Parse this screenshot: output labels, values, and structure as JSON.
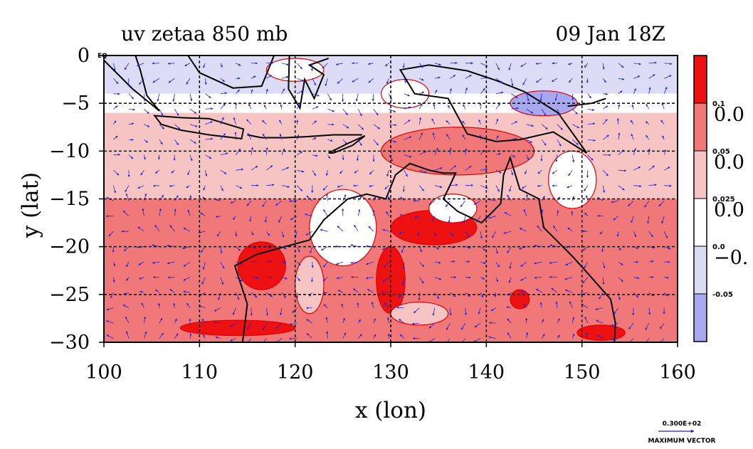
{
  "chart_data": {
    "type": "contour",
    "title": "uv zetaa 850 mb",
    "subtitle": "09 Jan 18Z",
    "xlabel": "x (lon)",
    "ylabel": "y (lat)",
    "xlim": [
      100,
      160
    ],
    "ylim": [
      -30,
      0
    ],
    "x_ticks": [
      100,
      110,
      120,
      130,
      140,
      150,
      160
    ],
    "y_ticks": [
      0,
      -5,
      -10,
      -15,
      -20,
      -25,
      -30
    ],
    "x_tick_labels": [
      "100",
      "110",
      "120",
      "130",
      "140",
      "150",
      "160"
    ],
    "y_tick_labels": [
      "0",
      "−5",
      "−10",
      "−15",
      "−20",
      "−25",
      "−30"
    ],
    "eq_label": "EQ",
    "grid": true,
    "colorbar": {
      "levels": [
        {
          "color": "#ee1111"
        },
        {
          "color": "#f07878"
        },
        {
          "color": "#f7c4c4"
        },
        {
          "color": "#ffffff"
        },
        {
          "color": "#dcdcf6"
        },
        {
          "color": "#a8a8ee"
        }
      ],
      "small_labels": [
        "0.1",
        "0.05",
        "0.025",
        "0.0",
        "-0.05"
      ],
      "big_labels": [
        "0.0",
        "0.0",
        "0.0",
        "−0."
      ]
    },
    "vector_key": {
      "value": "0.300E+02",
      "label": "MAXIMUM VECTOR"
    },
    "bands": [
      {
        "lat_top": 0,
        "lat_bottom": -4,
        "color": "#dcdcf6"
      },
      {
        "lat_top": -4,
        "lat_bottom": -6,
        "color": "#ffffff"
      },
      {
        "lat_top": -6,
        "lat_bottom": -9,
        "color": "#f7c4c4"
      },
      {
        "lat_top": -9,
        "lat_bottom": -15,
        "color": "#f7c4c4"
      },
      {
        "lat_top": -15,
        "lat_bottom": -30,
        "color": "#f07878"
      }
    ],
    "blobs": [
      {
        "lon": 116.5,
        "lat": -22,
        "rx": 2.5,
        "ry": 2.5,
        "color": "#ee1111"
      },
      {
        "lon": 134.5,
        "lat": -18,
        "rx": 4.5,
        "ry": 1.8,
        "color": "#ee1111"
      },
      {
        "lon": 130,
        "lat": -23.5,
        "rx": 1.5,
        "ry": 3.5,
        "color": "#ee1111"
      },
      {
        "lon": 114,
        "lat": -28.5,
        "rx": 6,
        "ry": 0.8,
        "color": "#ee1111"
      },
      {
        "lon": 152,
        "lat": -29,
        "rx": 2.5,
        "ry": 0.8,
        "color": "#ee1111"
      },
      {
        "lon": 143.5,
        "lat": -25.5,
        "rx": 1,
        "ry": 1,
        "color": "#ee1111"
      },
      {
        "lon": 137,
        "lat": -10,
        "rx": 8,
        "ry": 2.5,
        "color": "#f07878"
      },
      {
        "lon": 146,
        "lat": -5,
        "rx": 3.5,
        "ry": 1.3,
        "color": "#a8a8ee"
      },
      {
        "lon": 125,
        "lat": -18,
        "rx": 3.5,
        "ry": 4,
        "color": "#ffffff"
      },
      {
        "lon": 136.5,
        "lat": -16,
        "rx": 2.5,
        "ry": 1.5,
        "color": "#ffffff"
      },
      {
        "lon": 149,
        "lat": -13,
        "rx": 2.5,
        "ry": 3,
        "color": "#ffffff"
      },
      {
        "lon": 133,
        "lat": -27,
        "rx": 3,
        "ry": 1.2,
        "color": "#f7c4c4"
      },
      {
        "lon": 121.5,
        "lat": -24,
        "rx": 1.5,
        "ry": 3,
        "color": "#f7c4c4"
      },
      {
        "lon": 131.5,
        "lat": -4,
        "rx": 2.5,
        "ry": 1.5,
        "color": "#ffffff"
      },
      {
        "lon": 120,
        "lat": -1.5,
        "rx": 3,
        "ry": 1.2,
        "color": "#ffffff"
      }
    ],
    "coastlines": [
      {
        "name": "australia",
        "closed": true,
        "points": [
          [
            114.5,
            -30
          ],
          [
            115,
            -26
          ],
          [
            113.7,
            -22
          ],
          [
            116,
            -20.8
          ],
          [
            121.5,
            -19.3
          ],
          [
            123,
            -17.2
          ],
          [
            125.5,
            -15
          ],
          [
            127.5,
            -14.5
          ],
          [
            129.5,
            -15
          ],
          [
            130.5,
            -12.5
          ],
          [
            132,
            -11.3
          ],
          [
            134,
            -12
          ],
          [
            135.5,
            -12.3
          ],
          [
            136.8,
            -12.3
          ],
          [
            136,
            -14
          ],
          [
            135.5,
            -15
          ],
          [
            137,
            -16.3
          ],
          [
            139.5,
            -17.5
          ],
          [
            141.5,
            -15.5
          ],
          [
            141.8,
            -12.5
          ],
          [
            142.5,
            -10.7
          ],
          [
            143.5,
            -14
          ],
          [
            145.5,
            -15
          ],
          [
            146,
            -18
          ],
          [
            149,
            -21
          ],
          [
            150.8,
            -23
          ],
          [
            153,
            -25.5
          ],
          [
            153.5,
            -28
          ],
          [
            153.4,
            -30
          ],
          [
            114.5,
            -30
          ]
        ]
      },
      {
        "name": "new-guinea",
        "closed": true,
        "points": [
          [
            131,
            -1.5
          ],
          [
            134,
            -1
          ],
          [
            138,
            -1.6
          ],
          [
            141,
            -2.6
          ],
          [
            144,
            -3.8
          ],
          [
            147.5,
            -6
          ],
          [
            150.5,
            -10.2
          ],
          [
            147,
            -8
          ],
          [
            143.5,
            -8.8
          ],
          [
            141,
            -9
          ],
          [
            138,
            -8.2
          ],
          [
            136,
            -4.5
          ],
          [
            132.5,
            -4
          ],
          [
            131,
            -1.5
          ]
        ]
      },
      {
        "name": "borneo",
        "closed": false,
        "points": [
          [
            108.8,
            0
          ],
          [
            110,
            -1.8
          ],
          [
            113.5,
            -3.4
          ],
          [
            116.5,
            -3.2
          ],
          [
            117.8,
            0
          ]
        ]
      },
      {
        "name": "sumatra",
        "closed": false,
        "points": [
          [
            100,
            -0.5
          ],
          [
            103,
            -3.5
          ],
          [
            104.6,
            -4.8
          ],
          [
            105.8,
            -5.8
          ],
          [
            104.5,
            -4.2
          ],
          [
            103.8,
            -1.5
          ],
          [
            103.3,
            0
          ]
        ]
      },
      {
        "name": "java",
        "closed": true,
        "points": [
          [
            105.3,
            -6.3
          ],
          [
            108,
            -6.5
          ],
          [
            111,
            -6.6
          ],
          [
            114.6,
            -7.7
          ],
          [
            114.4,
            -8.7
          ],
          [
            111,
            -8.3
          ],
          [
            108,
            -7.8
          ],
          [
            106,
            -7.2
          ],
          [
            105.3,
            -6.3
          ]
        ]
      },
      {
        "name": "nusa-tenggara",
        "closed": false,
        "points": [
          [
            115,
            -8.3
          ],
          [
            116.5,
            -8.6
          ],
          [
            119,
            -8.6
          ],
          [
            121,
            -8.5
          ],
          [
            124,
            -8.3
          ],
          [
            127,
            -8.3
          ]
        ]
      },
      {
        "name": "timor",
        "closed": true,
        "points": [
          [
            123.5,
            -10.2
          ],
          [
            125.5,
            -9.2
          ],
          [
            127.3,
            -8.4
          ],
          [
            126,
            -9.4
          ],
          [
            124,
            -10.2
          ],
          [
            123.5,
            -10.2
          ]
        ]
      },
      {
        "name": "sulawesi",
        "closed": false,
        "points": [
          [
            119.4,
            0
          ],
          [
            119.3,
            -3.5
          ],
          [
            120.5,
            -5.5
          ],
          [
            121,
            -2.5
          ],
          [
            122,
            -4.5
          ],
          [
            123,
            -2
          ],
          [
            121.5,
            -1
          ],
          [
            123.5,
            -0.3
          ]
        ]
      },
      {
        "name": "new-britain",
        "closed": false,
        "points": [
          [
            148.5,
            -5.3
          ],
          [
            151,
            -5
          ],
          [
            152.5,
            -4.5
          ]
        ]
      }
    ]
  }
}
